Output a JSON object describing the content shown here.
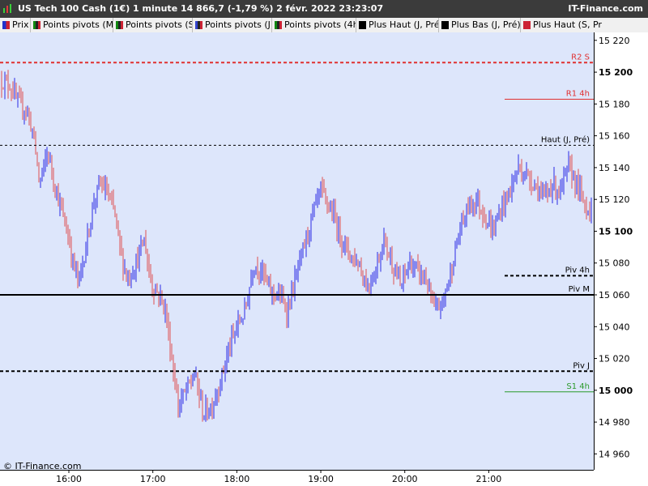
{
  "header": {
    "title": "US Tech 100 Cash (1€) 1 minute 14 866,7 (-1,79 %) 2 févr. 2022 23:23:07",
    "brand": "IT-Finance.com"
  },
  "legend": [
    {
      "label": "Prix",
      "color": "#2233cc"
    },
    {
      "label": "Points pivots (M)",
      "color": "#118811"
    },
    {
      "label": "Points pivots (S)",
      "color": "#118811"
    },
    {
      "label": "Points pivots (J)",
      "color": "#3344cc"
    },
    {
      "label": "Points pivots (4h)",
      "color": "#118811"
    },
    {
      "label": "Plus Haut (J, Pré)",
      "color": "#000000"
    },
    {
      "label": "Plus Bas (J, Pré)",
      "color": "#000000"
    },
    {
      "label": "Plus Haut (S, Pr",
      "color": "#cc2233"
    }
  ],
  "watermark": "© IT-Finance.com",
  "chart_data": {
    "type": "bar",
    "instrument": "US Tech 100 Cash (1€)",
    "interval": "1 minute",
    "last_price": "14 866,7",
    "change_pct": "-1,79 %",
    "up_color": "#2a2ae6",
    "down_color": "#e05050",
    "plot_background": "#dde6fb",
    "ylim": [
      14950,
      15225
    ],
    "y_ticks": [
      14960,
      14980,
      15000,
      15020,
      15040,
      15060,
      15080,
      15100,
      15120,
      15140,
      15160,
      15180,
      15200,
      15220
    ],
    "y_tick_labels": [
      "14 960",
      "14 980",
      "15 000",
      "15 020",
      "15 040",
      "15 060",
      "15 080",
      "15 100",
      "15 120",
      "15 140",
      "15 160",
      "15 180",
      "15 200",
      "15 220"
    ],
    "y_bold_ticks": [
      15000,
      15100,
      15200
    ],
    "xlim": [
      15.18,
      22.25
    ],
    "x_ticks": [
      16,
      17,
      18,
      19,
      20,
      21
    ],
    "x_tick_labels": [
      "16:00",
      "17:00",
      "18:00",
      "19:00",
      "20:00",
      "21:00"
    ],
    "levels": [
      {
        "label": "R2 S",
        "value": 15206,
        "color": "#e03030",
        "style": "dashed",
        "extent": "full",
        "width": 2
      },
      {
        "label": "R1 4h",
        "value": 15183,
        "color": "#e03030",
        "style": "solid",
        "extent": "partial",
        "width": 1
      },
      {
        "label": "Haut (J, Pré)",
        "value": 15154,
        "color": "#000000",
        "style": "dashed",
        "extent": "full",
        "width": 1
      },
      {
        "label": "Piv 4h",
        "value": 15072,
        "color": "#000000",
        "style": "dashed",
        "extent": "partial",
        "width": 2
      },
      {
        "label": "Piv M",
        "value": 15060,
        "color": "#000000",
        "style": "solid",
        "extent": "full",
        "width": 2
      },
      {
        "label": "Piv J",
        "value": 15012,
        "color": "#000000",
        "style": "dashed",
        "extent": "full",
        "width": 2
      },
      {
        "label": "S1 4h",
        "value": 14999,
        "color": "#2a9a2a",
        "style": "solid",
        "extent": "partial",
        "width": 1
      }
    ],
    "price_path": [
      [
        15.18,
        15195
      ],
      [
        15.3,
        15192
      ],
      [
        15.4,
        15180
      ],
      [
        15.5,
        15176
      ],
      [
        15.58,
        15160
      ],
      [
        15.65,
        15130
      ],
      [
        15.75,
        15150
      ],
      [
        15.85,
        15125
      ],
      [
        15.95,
        15105
      ],
      [
        16.0,
        15095
      ],
      [
        16.05,
        15080
      ],
      [
        16.12,
        15068
      ],
      [
        16.2,
        15090
      ],
      [
        16.3,
        15120
      ],
      [
        16.38,
        15130
      ],
      [
        16.45,
        15125
      ],
      [
        16.55,
        15110
      ],
      [
        16.62,
        15085
      ],
      [
        16.7,
        15070
      ],
      [
        16.8,
        15080
      ],
      [
        16.9,
        15095
      ],
      [
        16.95,
        15075
      ],
      [
        17.0,
        15065
      ],
      [
        17.08,
        15060
      ],
      [
        17.15,
        15050
      ],
      [
        17.25,
        15010
      ],
      [
        17.3,
        14990
      ],
      [
        17.4,
        15000
      ],
      [
        17.5,
        15010
      ],
      [
        17.6,
        14985
      ],
      [
        17.7,
        14990
      ],
      [
        17.8,
        15005
      ],
      [
        17.9,
        15025
      ],
      [
        18.0,
        15040
      ],
      [
        18.1,
        15050
      ],
      [
        18.2,
        15080
      ],
      [
        18.3,
        15075
      ],
      [
        18.4,
        15062
      ],
      [
        18.5,
        15060
      ],
      [
        18.6,
        15050
      ],
      [
        18.7,
        15070
      ],
      [
        18.8,
        15090
      ],
      [
        18.9,
        15110
      ],
      [
        19.0,
        15125
      ],
      [
        19.05,
        15120
      ],
      [
        19.15,
        15110
      ],
      [
        19.25,
        15095
      ],
      [
        19.35,
        15085
      ],
      [
        19.45,
        15080
      ],
      [
        19.55,
        15065
      ],
      [
        19.65,
        15075
      ],
      [
        19.75,
        15095
      ],
      [
        19.85,
        15080
      ],
      [
        19.95,
        15065
      ],
      [
        20.05,
        15080
      ],
      [
        20.15,
        15075
      ],
      [
        20.25,
        15070
      ],
      [
        20.35,
        15050
      ],
      [
        20.45,
        15055
      ],
      [
        20.55,
        15075
      ],
      [
        20.65,
        15100
      ],
      [
        20.75,
        15115
      ],
      [
        20.85,
        15120
      ],
      [
        20.95,
        15110
      ],
      [
        21.05,
        15100
      ],
      [
        21.15,
        15115
      ],
      [
        21.25,
        15125
      ],
      [
        21.35,
        15140
      ],
      [
        21.45,
        15135
      ],
      [
        21.55,
        15130
      ],
      [
        21.65,
        15120
      ],
      [
        21.75,
        15130
      ],
      [
        21.85,
        15125
      ],
      [
        21.95,
        15140
      ],
      [
        22.05,
        15130
      ],
      [
        22.15,
        15115
      ]
    ]
  }
}
